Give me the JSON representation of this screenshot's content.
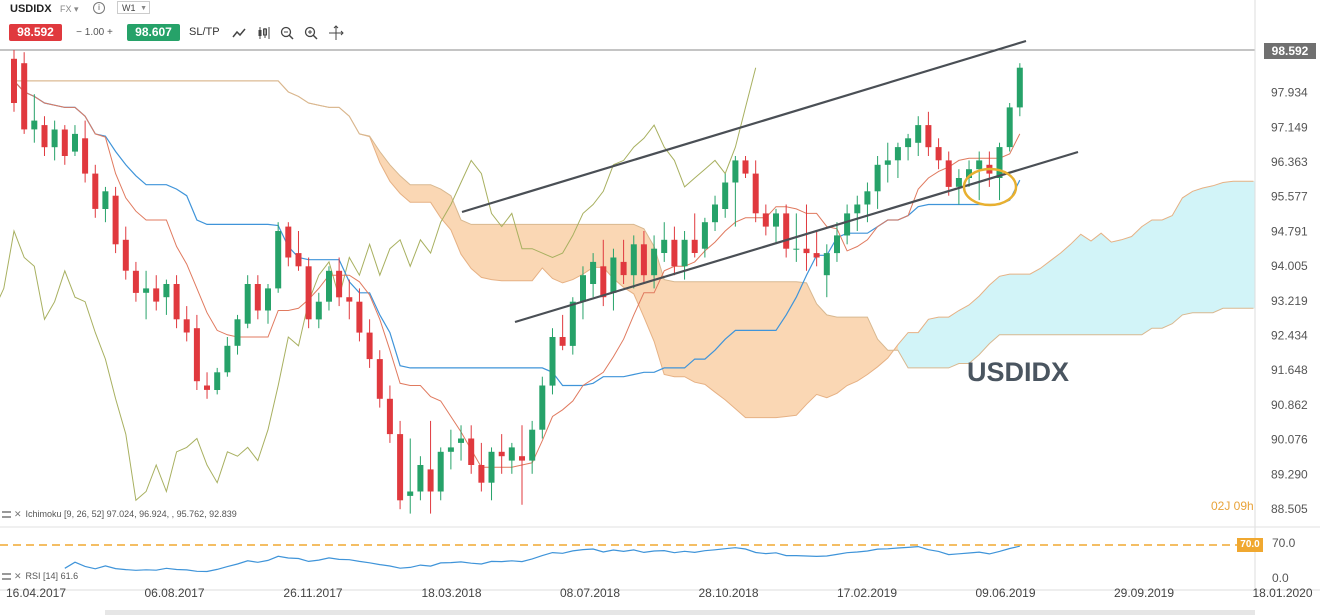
{
  "header": {
    "symbol": "USDIDX",
    "market": "FX",
    "timeframe": "W1",
    "sell_price": "98.592",
    "quantity": "1.00",
    "buy_price": "98.607",
    "sltp_label": "SL/TP",
    "current_price_tag": "98.592"
  },
  "watermark": "USDIDX",
  "countdown": "02J 09h",
  "indicators": {
    "ichimoku_label": "Ichimoku [9, 26, 52] 97.024, 96.924, , 95.762, 92.839",
    "rsi_label": "RSI [14] 61.6",
    "rsi_level_tag": "70.0"
  },
  "colors": {
    "bull": "#26a269",
    "bear": "#e0393e",
    "kijun": "#3f94d9",
    "tenkan": "#e07a5f",
    "chikou": "#a8b060",
    "cloud_bull": "#d2f4f8",
    "cloud_bear": "#fad7b4",
    "channel": "#4a4f55",
    "highlight": "#e8b030"
  },
  "chart_data": {
    "type": "candlestick",
    "title": "USDIDX",
    "ylim": [
      88.3,
      98.9
    ],
    "y_ticks": [
      "97.934",
      "97.149",
      "96.363",
      "95.577",
      "94.791",
      "94.005",
      "93.219",
      "92.434",
      "91.648",
      "90.862",
      "90.076",
      "89.290",
      "88.505"
    ],
    "x_ticks": [
      "16.04.2017",
      "06.08.2017",
      "26.11.2017",
      "18.03.2018",
      "08.07.2018",
      "28.10.2018",
      "17.02.2019",
      "09.06.2019",
      "29.09.2019",
      "18.01.2020"
    ],
    "rsi_ticks": [
      "70.0",
      "0.0"
    ],
    "candles": [
      {
        "o": 98.7,
        "h": 98.9,
        "l": 97.5,
        "c": 97.7
      },
      {
        "o": 98.6,
        "h": 98.85,
        "l": 97.0,
        "c": 97.1
      },
      {
        "o": 97.1,
        "h": 97.9,
        "l": 96.8,
        "c": 97.3
      },
      {
        "o": 97.2,
        "h": 97.4,
        "l": 96.5,
        "c": 96.7
      },
      {
        "o": 96.7,
        "h": 97.3,
        "l": 96.4,
        "c": 97.1
      },
      {
        "o": 97.1,
        "h": 97.2,
        "l": 96.3,
        "c": 96.5
      },
      {
        "o": 96.6,
        "h": 97.2,
        "l": 96.5,
        "c": 97.0
      },
      {
        "o": 96.9,
        "h": 97.3,
        "l": 95.9,
        "c": 96.1
      },
      {
        "o": 96.1,
        "h": 96.3,
        "l": 95.1,
        "c": 95.3
      },
      {
        "o": 95.3,
        "h": 95.8,
        "l": 95.0,
        "c": 95.7
      },
      {
        "o": 95.6,
        "h": 95.8,
        "l": 94.3,
        "c": 94.5
      },
      {
        "o": 94.6,
        "h": 94.9,
        "l": 93.7,
        "c": 93.9
      },
      {
        "o": 93.9,
        "h": 94.1,
        "l": 93.2,
        "c": 93.4
      },
      {
        "o": 93.4,
        "h": 93.9,
        "l": 92.8,
        "c": 93.5
      },
      {
        "o": 93.5,
        "h": 93.8,
        "l": 93.0,
        "c": 93.2
      },
      {
        "o": 93.3,
        "h": 93.7,
        "l": 92.9,
        "c": 93.6
      },
      {
        "o": 93.6,
        "h": 93.8,
        "l": 92.6,
        "c": 92.8
      },
      {
        "o": 92.8,
        "h": 93.1,
        "l": 92.3,
        "c": 92.5
      },
      {
        "o": 92.6,
        "h": 92.9,
        "l": 91.2,
        "c": 91.4
      },
      {
        "o": 91.3,
        "h": 91.6,
        "l": 91.0,
        "c": 91.2
      },
      {
        "o": 91.2,
        "h": 91.7,
        "l": 91.1,
        "c": 91.6
      },
      {
        "o": 91.6,
        "h": 92.4,
        "l": 91.5,
        "c": 92.2
      },
      {
        "o": 92.2,
        "h": 92.9,
        "l": 92.0,
        "c": 92.8
      },
      {
        "o": 92.7,
        "h": 93.8,
        "l": 92.6,
        "c": 93.6
      },
      {
        "o": 93.6,
        "h": 93.8,
        "l": 92.8,
        "c": 93.0
      },
      {
        "o": 93.0,
        "h": 93.6,
        "l": 92.7,
        "c": 93.5
      },
      {
        "o": 93.5,
        "h": 95.0,
        "l": 93.4,
        "c": 94.8
      },
      {
        "o": 94.9,
        "h": 95.0,
        "l": 94.0,
        "c": 94.2
      },
      {
        "o": 94.3,
        "h": 94.8,
        "l": 93.9,
        "c": 94.0
      },
      {
        "o": 94.0,
        "h": 94.2,
        "l": 92.6,
        "c": 92.8
      },
      {
        "o": 92.8,
        "h": 93.4,
        "l": 92.6,
        "c": 93.2
      },
      {
        "o": 93.2,
        "h": 94.0,
        "l": 93.0,
        "c": 93.9
      },
      {
        "o": 93.9,
        "h": 94.2,
        "l": 93.1,
        "c": 93.3
      },
      {
        "o": 93.3,
        "h": 93.7,
        "l": 92.8,
        "c": 93.2
      },
      {
        "o": 93.2,
        "h": 93.5,
        "l": 92.3,
        "c": 92.5
      },
      {
        "o": 92.5,
        "h": 92.8,
        "l": 91.7,
        "c": 91.9
      },
      {
        "o": 91.9,
        "h": 92.1,
        "l": 90.8,
        "c": 91.0
      },
      {
        "o": 91.0,
        "h": 91.3,
        "l": 90.0,
        "c": 90.2
      },
      {
        "o": 90.2,
        "h": 90.5,
        "l": 88.5,
        "c": 88.7
      },
      {
        "o": 88.8,
        "h": 90.1,
        "l": 88.4,
        "c": 88.9
      },
      {
        "o": 88.9,
        "h": 89.7,
        "l": 88.7,
        "c": 89.5
      },
      {
        "o": 89.4,
        "h": 90.5,
        "l": 88.4,
        "c": 88.9
      },
      {
        "o": 88.9,
        "h": 89.9,
        "l": 88.7,
        "c": 89.8
      },
      {
        "o": 89.8,
        "h": 90.3,
        "l": 89.4,
        "c": 89.9
      },
      {
        "o": 90.0,
        "h": 90.4,
        "l": 89.6,
        "c": 90.1
      },
      {
        "o": 90.1,
        "h": 90.4,
        "l": 89.3,
        "c": 89.5
      },
      {
        "o": 89.5,
        "h": 90.0,
        "l": 88.9,
        "c": 89.1
      },
      {
        "o": 89.1,
        "h": 89.9,
        "l": 88.7,
        "c": 89.8
      },
      {
        "o": 89.8,
        "h": 90.2,
        "l": 89.3,
        "c": 89.7
      },
      {
        "o": 89.6,
        "h": 90.0,
        "l": 89.3,
        "c": 89.9
      },
      {
        "o": 89.7,
        "h": 90.4,
        "l": 88.6,
        "c": 89.6
      },
      {
        "o": 89.6,
        "h": 90.5,
        "l": 89.3,
        "c": 90.3
      },
      {
        "o": 90.3,
        "h": 91.5,
        "l": 90.1,
        "c": 91.3
      },
      {
        "o": 91.3,
        "h": 92.6,
        "l": 91.1,
        "c": 92.4
      },
      {
        "o": 92.4,
        "h": 92.9,
        "l": 92.1,
        "c": 92.2
      },
      {
        "o": 92.2,
        "h": 93.3,
        "l": 92.0,
        "c": 93.2
      },
      {
        "o": 93.2,
        "h": 94.0,
        "l": 92.8,
        "c": 93.8
      },
      {
        "o": 93.6,
        "h": 94.3,
        "l": 93.3,
        "c": 94.1
      },
      {
        "o": 94.0,
        "h": 94.6,
        "l": 93.1,
        "c": 93.3
      },
      {
        "o": 93.4,
        "h": 94.4,
        "l": 93.0,
        "c": 94.2
      },
      {
        "o": 94.1,
        "h": 94.6,
        "l": 93.6,
        "c": 93.8
      },
      {
        "o": 93.8,
        "h": 94.7,
        "l": 93.5,
        "c": 94.5
      },
      {
        "o": 94.5,
        "h": 94.8,
        "l": 93.6,
        "c": 93.8
      },
      {
        "o": 93.8,
        "h": 94.7,
        "l": 93.5,
        "c": 94.4
      },
      {
        "o": 94.3,
        "h": 95.0,
        "l": 94.1,
        "c": 94.6
      },
      {
        "o": 94.6,
        "h": 94.9,
        "l": 93.8,
        "c": 94.0
      },
      {
        "o": 94.0,
        "h": 94.8,
        "l": 93.7,
        "c": 94.6
      },
      {
        "o": 94.6,
        "h": 95.2,
        "l": 94.2,
        "c": 94.3
      },
      {
        "o": 94.4,
        "h": 95.1,
        "l": 94.2,
        "c": 95.0
      },
      {
        "o": 95.0,
        "h": 95.6,
        "l": 94.8,
        "c": 95.4
      },
      {
        "o": 95.3,
        "h": 96.1,
        "l": 95.1,
        "c": 95.9
      },
      {
        "o": 95.9,
        "h": 96.5,
        "l": 94.9,
        "c": 96.4
      },
      {
        "o": 96.4,
        "h": 96.5,
        "l": 96.0,
        "c": 96.1
      },
      {
        "o": 96.1,
        "h": 96.4,
        "l": 95.0,
        "c": 95.2
      },
      {
        "o": 95.2,
        "h": 95.4,
        "l": 94.7,
        "c": 94.9
      },
      {
        "o": 94.9,
        "h": 95.3,
        "l": 94.5,
        "c": 95.2
      },
      {
        "o": 95.2,
        "h": 95.4,
        "l": 94.2,
        "c": 94.4
      },
      {
        "o": 94.4,
        "h": 95.2,
        "l": 94.1,
        "c": 94.4
      },
      {
        "o": 94.4,
        "h": 95.4,
        "l": 93.9,
        "c": 94.3
      },
      {
        "o": 94.3,
        "h": 94.8,
        "l": 94.0,
        "c": 94.2
      },
      {
        "o": 93.8,
        "h": 94.5,
        "l": 93.3,
        "c": 94.3
      },
      {
        "o": 94.3,
        "h": 95.0,
        "l": 94.1,
        "c": 94.7
      },
      {
        "o": 94.7,
        "h": 95.4,
        "l": 94.5,
        "c": 95.2
      },
      {
        "o": 95.2,
        "h": 95.6,
        "l": 94.8,
        "c": 95.4
      },
      {
        "o": 95.4,
        "h": 95.9,
        "l": 95.0,
        "c": 95.7
      },
      {
        "o": 95.7,
        "h": 96.5,
        "l": 95.3,
        "c": 96.3
      },
      {
        "o": 96.3,
        "h": 96.8,
        "l": 95.9,
        "c": 96.4
      },
      {
        "o": 96.4,
        "h": 96.8,
        "l": 96.0,
        "c": 96.7
      },
      {
        "o": 96.7,
        "h": 97.0,
        "l": 96.4,
        "c": 96.9
      },
      {
        "o": 96.8,
        "h": 97.4,
        "l": 96.5,
        "c": 97.2
      },
      {
        "o": 97.2,
        "h": 97.5,
        "l": 96.5,
        "c": 96.7
      },
      {
        "o": 96.7,
        "h": 96.9,
        "l": 96.2,
        "c": 96.4
      },
      {
        "o": 96.4,
        "h": 96.6,
        "l": 95.6,
        "c": 95.8
      },
      {
        "o": 95.8,
        "h": 96.2,
        "l": 95.4,
        "c": 96.0
      },
      {
        "o": 96.0,
        "h": 96.4,
        "l": 95.8,
        "c": 96.2
      },
      {
        "o": 96.2,
        "h": 96.6,
        "l": 95.5,
        "c": 96.4
      },
      {
        "o": 96.3,
        "h": 96.6,
        "l": 95.8,
        "c": 96.1
      },
      {
        "o": 96.0,
        "h": 96.8,
        "l": 95.5,
        "c": 96.7
      },
      {
        "o": 96.7,
        "h": 97.7,
        "l": 96.6,
        "c": 97.6
      },
      {
        "o": 97.6,
        "h": 98.6,
        "l": 97.4,
        "c": 98.5
      }
    ]
  }
}
